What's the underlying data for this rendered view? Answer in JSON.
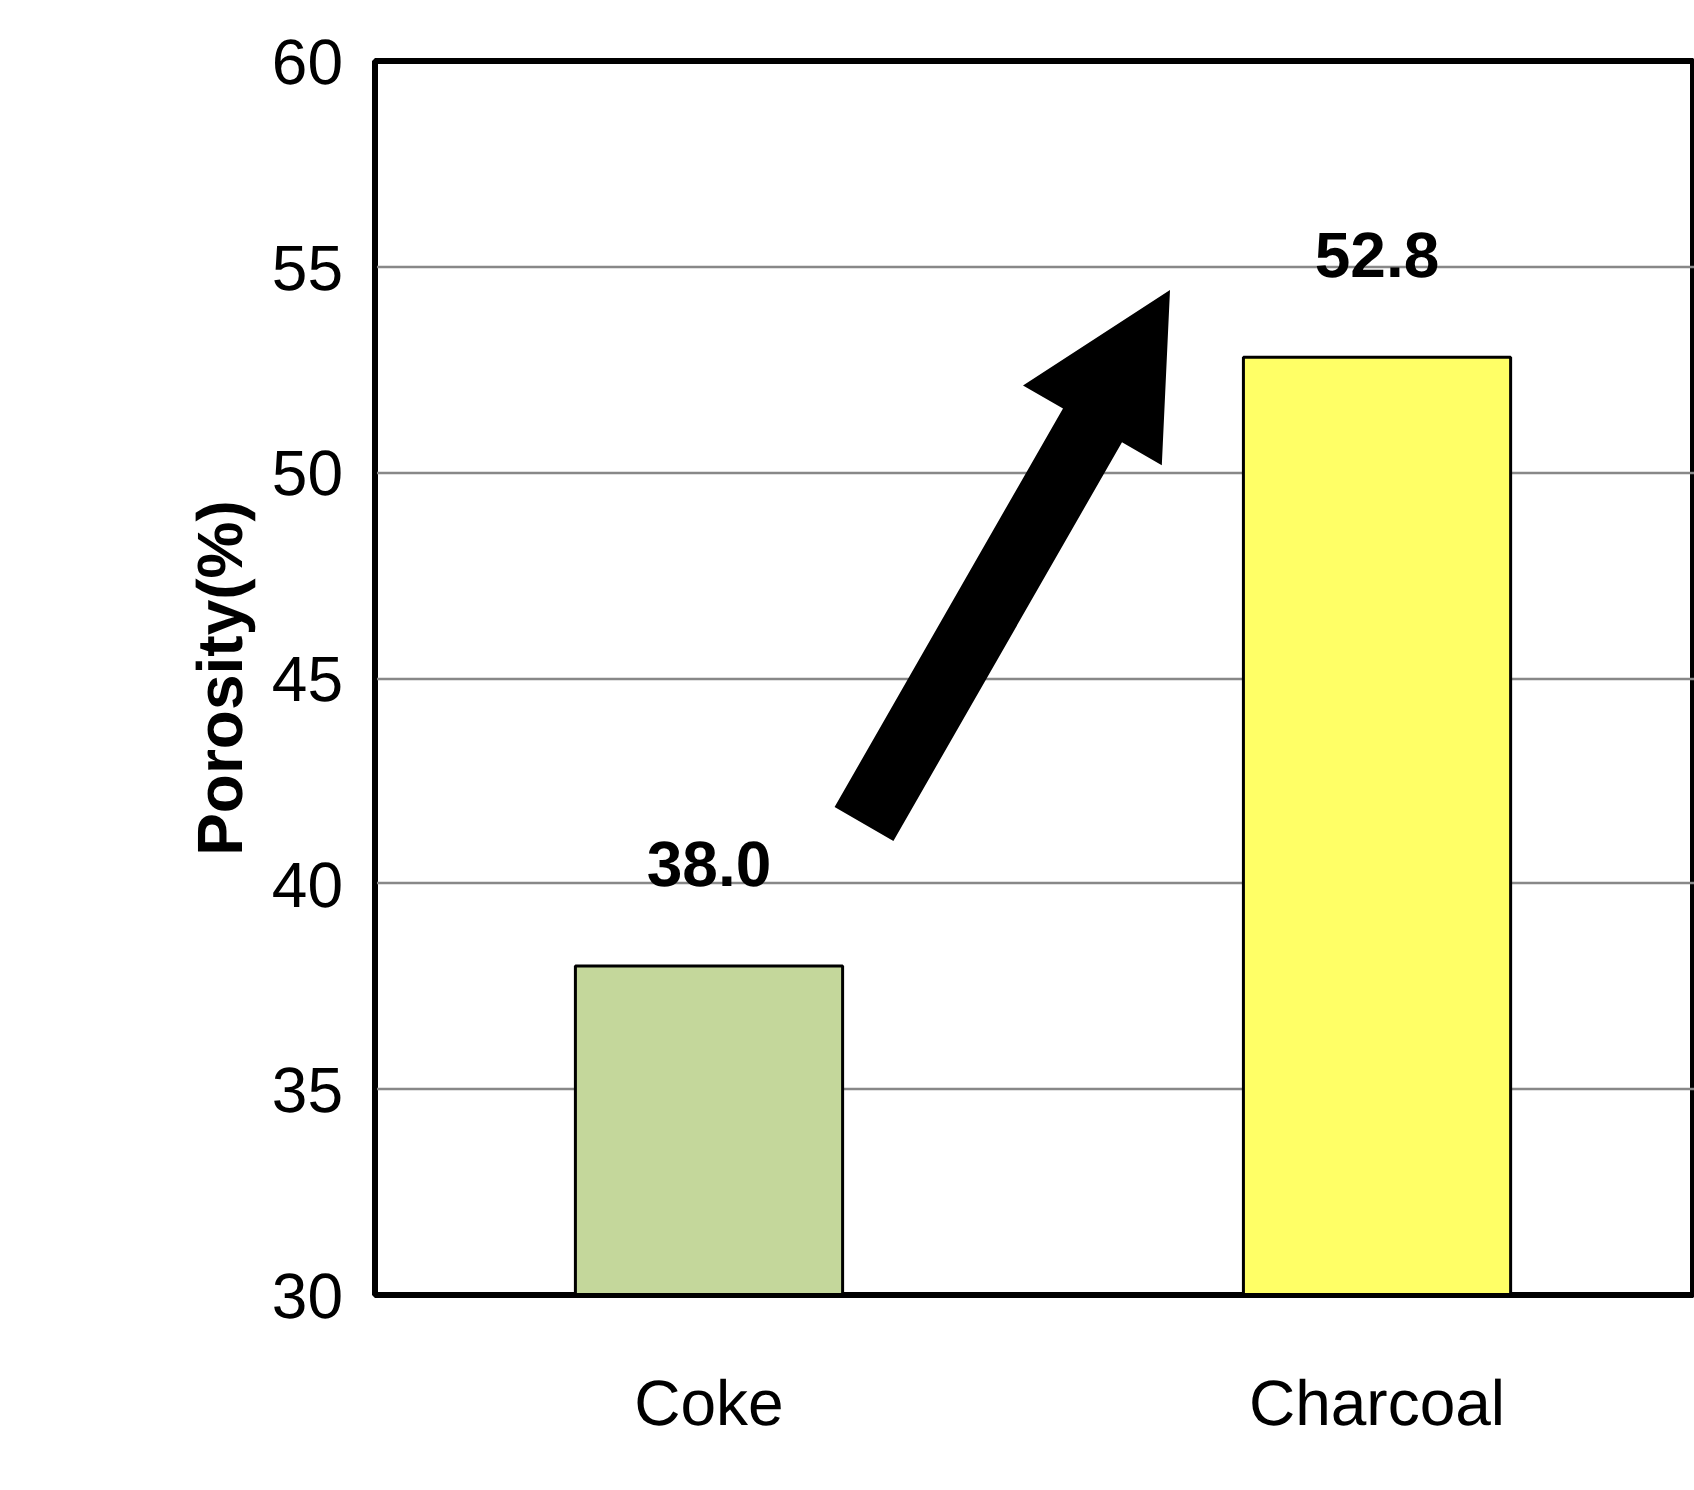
{
  "chart_data": {
    "type": "bar",
    "ylabel": "Porosity(%)",
    "categories": [
      "Coke",
      "Charcoal"
    ],
    "values": [
      38.0,
      52.8
    ],
    "colors": [
      "#c4d79b",
      "#ffff66"
    ],
    "value_labels": [
      "38.0",
      "52.8"
    ],
    "ylim": [
      30,
      60
    ],
    "yticks": [
      30,
      35,
      40,
      45,
      50,
      55,
      60
    ],
    "grid": "y"
  }
}
